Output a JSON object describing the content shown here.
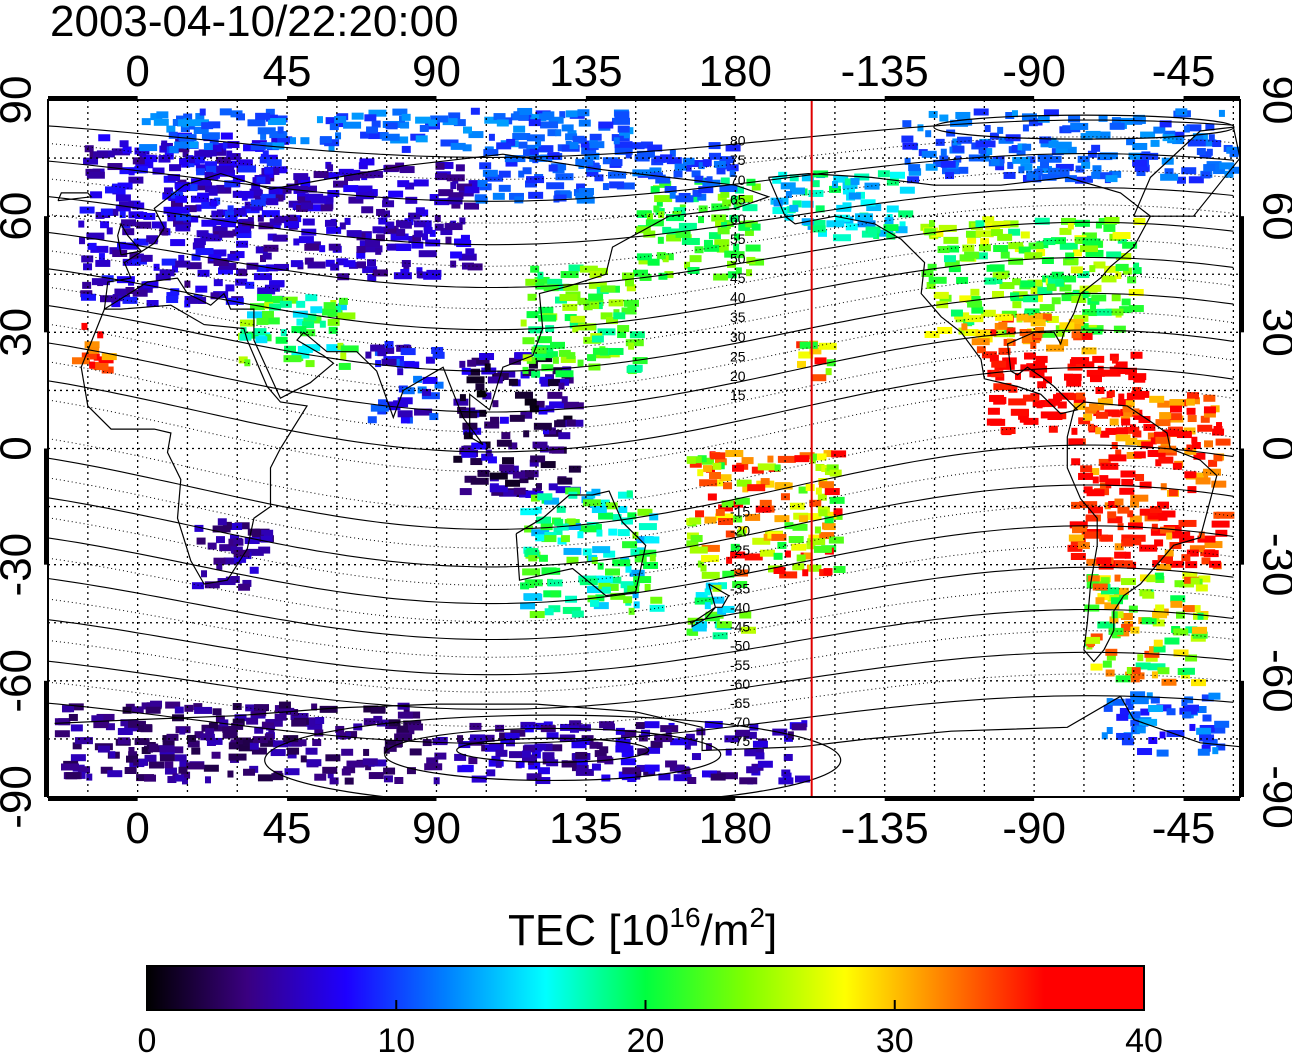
{
  "title": "2003-04-10/22:20:00",
  "map": {
    "lon_range": [
      -27,
      332
    ],
    "lat_range": [
      -90,
      90
    ],
    "top_axis_labels": [
      {
        "lon": 0,
        "text": "0"
      },
      {
        "lon": 45,
        "text": "45"
      },
      {
        "lon": 90,
        "text": "90"
      },
      {
        "lon": 135,
        "text": "135"
      },
      {
        "lon": 180,
        "text": "180"
      },
      {
        "lon": 225,
        "text": "-135"
      },
      {
        "lon": 270,
        "text": "-90"
      },
      {
        "lon": 315,
        "text": "-45"
      }
    ],
    "bottom_axis_labels": [
      {
        "lon": 0,
        "text": "0"
      },
      {
        "lon": 45,
        "text": "45"
      },
      {
        "lon": 90,
        "text": "90"
      },
      {
        "lon": 135,
        "text": "135"
      },
      {
        "lon": 180,
        "text": "180"
      },
      {
        "lon": 225,
        "text": "-135"
      },
      {
        "lon": 270,
        "text": "-90"
      },
      {
        "lon": 315,
        "text": "-45"
      }
    ],
    "left_axis_labels": [
      {
        "lat": 90,
        "text": "90"
      },
      {
        "lat": 60,
        "text": "60"
      },
      {
        "lat": 30,
        "text": "30"
      },
      {
        "lat": 0,
        "text": "0"
      },
      {
        "lat": -30,
        "text": "-30"
      },
      {
        "lat": -60,
        "text": "-60"
      },
      {
        "lat": -90,
        "text": "-90"
      }
    ],
    "right_axis_labels": [
      {
        "lat": 90,
        "text": "90"
      },
      {
        "lat": 60,
        "text": "60"
      },
      {
        "lat": 30,
        "text": "30"
      },
      {
        "lat": 0,
        "text": "0"
      },
      {
        "lat": -30,
        "text": "-30"
      },
      {
        "lat": -60,
        "text": "-60"
      },
      {
        "lat": -90,
        "text": "-90"
      }
    ],
    "midnight_meridian_lon": 203,
    "midnight_meridian_color": "#e00000",
    "contour_labels": [
      {
        "lat": 80,
        "text": "80"
      },
      {
        "lat": 75,
        "text": "75"
      },
      {
        "lat": 70,
        "text": "70"
      },
      {
        "lat": 65,
        "text": "65"
      },
      {
        "lat": 60,
        "text": "60"
      },
      {
        "lat": 55,
        "text": "55"
      },
      {
        "lat": 50,
        "text": "50"
      },
      {
        "lat": 45,
        "text": "45"
      },
      {
        "lat": 40,
        "text": "40"
      },
      {
        "lat": 35,
        "text": "35"
      },
      {
        "lat": 30,
        "text": "30"
      },
      {
        "lat": 25,
        "text": "25"
      },
      {
        "lat": 20,
        "text": "20"
      },
      {
        "lat": 15,
        "text": "15"
      },
      {
        "lat": -15,
        "text": "-15"
      },
      {
        "lat": -20,
        "text": "-20"
      },
      {
        "lat": -25,
        "text": "-25"
      },
      {
        "lat": -30,
        "text": "-30"
      },
      {
        "lat": -35,
        "text": "-35"
      },
      {
        "lat": -40,
        "text": "-40"
      },
      {
        "lat": -45,
        "text": "-45"
      },
      {
        "lat": -50,
        "text": "-50"
      },
      {
        "lat": -55,
        "text": "-55"
      },
      {
        "lat": -60,
        "text": "-60"
      },
      {
        "lat": -65,
        "text": "-65"
      },
      {
        "lat": -70,
        "text": "-70"
      },
      {
        "lat": -75,
        "text": "-75"
      }
    ]
  },
  "tec_regions": [
    {
      "name": "europe",
      "lon": [
        -18,
        42
      ],
      "lat": [
        38,
        82
      ],
      "tec": [
        4,
        9
      ]
    },
    {
      "name": "scandinavia",
      "lon": [
        5,
        40
      ],
      "lat": [
        60,
        80
      ],
      "tec": [
        6,
        10
      ]
    },
    {
      "name": "russia",
      "lon": [
        40,
        100
      ],
      "lat": [
        45,
        75
      ],
      "tec": [
        4,
        8
      ]
    },
    {
      "name": "arctic-north",
      "lon": [
        0,
        150
      ],
      "lat": [
        78,
        88
      ],
      "tec": [
        9,
        13
      ]
    },
    {
      "name": "canary",
      "lon": [
        -20,
        -10
      ],
      "lat": [
        20,
        33
      ],
      "tec": [
        30,
        39
      ]
    },
    {
      "name": "middle-east",
      "lon": [
        30,
        62
      ],
      "lat": [
        22,
        40
      ],
      "tec": [
        14,
        26
      ]
    },
    {
      "name": "india",
      "lon": [
        68,
        90
      ],
      "lat": [
        8,
        28
      ],
      "tec": [
        5,
        12
      ]
    },
    {
      "name": "se-asia",
      "lon": [
        95,
        130
      ],
      "lat": [
        -12,
        25
      ],
      "tec": [
        0,
        8
      ]
    },
    {
      "name": "china-japan",
      "lon": [
        115,
        150
      ],
      "lat": [
        20,
        48
      ],
      "tec": [
        18,
        26
      ]
    },
    {
      "name": "kamchatka",
      "lon": [
        150,
        185
      ],
      "lat": [
        45,
        70
      ],
      "tec": [
        18,
        25
      ]
    },
    {
      "name": "east-siberia",
      "lon": [
        100,
        180
      ],
      "lat": [
        65,
        80
      ],
      "tec": [
        9,
        12
      ]
    },
    {
      "name": "south-africa",
      "lon": [
        15,
        38
      ],
      "lat": [
        -35,
        -18
      ],
      "tec": [
        3,
        7
      ]
    },
    {
      "name": "australia",
      "lon": [
        115,
        155
      ],
      "lat": [
        -42,
        -10
      ],
      "tec": [
        13,
        24
      ]
    },
    {
      "name": "new-zealand",
      "lon": [
        165,
        182
      ],
      "lat": [
        -48,
        -34
      ],
      "tec": [
        14,
        26
      ]
    },
    {
      "name": "pacific-islands",
      "lon": [
        165,
        210
      ],
      "lat": [
        -32,
        0
      ],
      "tec": [
        20,
        38
      ]
    },
    {
      "name": "hawaii",
      "lon": [
        198,
        210
      ],
      "lat": [
        18,
        28
      ],
      "tec": [
        18,
        38
      ]
    },
    {
      "name": "alaska",
      "lon": [
        190,
        230
      ],
      "lat": [
        55,
        72
      ],
      "tec": [
        12,
        20
      ]
    },
    {
      "name": "canada-arctic",
      "lon": [
        230,
        330
      ],
      "lat": [
        70,
        88
      ],
      "tec": [
        9,
        13
      ]
    },
    {
      "name": "north-america",
      "lon": [
        235,
        300
      ],
      "lat": [
        30,
        60
      ],
      "tec": [
        18,
        28
      ]
    },
    {
      "name": "usa-south",
      "lon": [
        248,
        285
      ],
      "lat": [
        25,
        35
      ],
      "tec": [
        28,
        36
      ]
    },
    {
      "name": "mexico-caribbean",
      "lon": [
        255,
        300
      ],
      "lat": [
        5,
        25
      ],
      "tec": [
        35,
        40
      ]
    },
    {
      "name": "south-america-north",
      "lon": [
        280,
        325
      ],
      "lat": [
        -30,
        15
      ],
      "tec": [
        30,
        40
      ]
    },
    {
      "name": "south-america-south",
      "lon": [
        285,
        320
      ],
      "lat": [
        -60,
        -30
      ],
      "tec": [
        18,
        34
      ]
    },
    {
      "name": "antarctica-west",
      "lon": [
        -25,
        90
      ],
      "lat": [
        -85,
        -65
      ],
      "tec": [
        2,
        6
      ]
    },
    {
      "name": "antarctica-pacific",
      "lon": [
        95,
        200
      ],
      "lat": [
        -85,
        -70
      ],
      "tec": [
        3,
        8
      ]
    },
    {
      "name": "drake-passage",
      "lon": [
        290,
        325
      ],
      "lat": [
        -78,
        -62
      ],
      "tec": [
        8,
        14
      ]
    }
  ],
  "colorbar": {
    "title_prefix": "TEC  [10",
    "title_exp1": "16",
    "title_mid": "/m",
    "title_exp2": "2",
    "title_suffix": "]",
    "min": 0,
    "max": 40,
    "ticks": [
      {
        "value": 0,
        "text": "0"
      },
      {
        "value": 10,
        "text": "10"
      },
      {
        "value": 20,
        "text": "20"
      },
      {
        "value": 30,
        "text": "30"
      },
      {
        "value": 40,
        "text": "40"
      }
    ],
    "colors": [
      "#000000",
      "#3a0080",
      "#1e00ff",
      "#0080ff",
      "#00ffff",
      "#00ff40",
      "#80ff00",
      "#ffff00",
      "#ff8000",
      "#ff0000",
      "#ff0000"
    ]
  }
}
